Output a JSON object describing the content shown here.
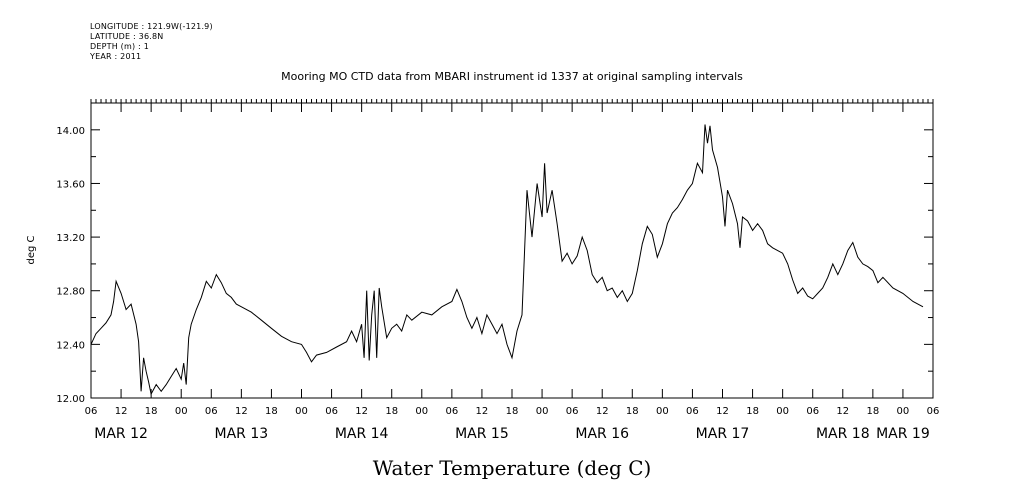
{
  "meta": {
    "longitude": "LONGITUDE : 121.9W(-121.9)",
    "latitude": "LATITUDE : 36.8N",
    "depth": "DEPTH (m) : 1",
    "year": "YEAR : 2011"
  },
  "chart_data": {
    "type": "line",
    "title": "Mooring MO CTD data from MBARI instrument id 1337 at original sampling intervals",
    "xlabel": "Water Temperature (deg C)",
    "ylabel": "deg C",
    "ylim": [
      12.0,
      14.2
    ],
    "xlim_hours": [
      0,
      168
    ],
    "x_start": "2011-03-12T06:00",
    "x_end": "2011-03-19T06:00",
    "yticks": [
      "12.00",
      "12.40",
      "12.80",
      "13.20",
      "13.60",
      "14.00"
    ],
    "x_hour_ticks": [
      "06",
      "12",
      "18",
      "00",
      "06",
      "12",
      "18",
      "00",
      "06",
      "12",
      "18",
      "00",
      "06",
      "12",
      "18",
      "00",
      "06",
      "12",
      "18",
      "00",
      "06",
      "12",
      "18",
      "00",
      "06",
      "12",
      "18",
      "00",
      "06"
    ],
    "x_day_labels": [
      "MAR 12",
      "MAR 13",
      "MAR 14",
      "MAR 15",
      "MAR 16",
      "MAR 17",
      "MAR 18",
      "MAR 19"
    ],
    "grid": false,
    "series": [
      {
        "values": [
          [
            "2011-03-12T06:00",
            12.4
          ],
          [
            "2011-03-12T07:00",
            12.48
          ],
          [
            "2011-03-12T08:00",
            12.52
          ],
          [
            "2011-03-12T09:00",
            12.56
          ],
          [
            "2011-03-12T10:00",
            12.62
          ],
          [
            "2011-03-12T10:30",
            12.72
          ],
          [
            "2011-03-12T11:00",
            12.87
          ],
          [
            "2011-03-12T12:00",
            12.78
          ],
          [
            "2011-03-12T13:00",
            12.66
          ],
          [
            "2011-03-12T14:00",
            12.7
          ],
          [
            "2011-03-12T15:00",
            12.55
          ],
          [
            "2011-03-12T15:30",
            12.42
          ],
          [
            "2011-03-12T16:00",
            12.05
          ],
          [
            "2011-03-12T16:30",
            12.3
          ],
          [
            "2011-03-12T17:00",
            12.2
          ],
          [
            "2011-03-12T17:30",
            12.12
          ],
          [
            "2011-03-12T18:00",
            12.03
          ],
          [
            "2011-03-12T19:00",
            12.1
          ],
          [
            "2011-03-12T20:00",
            12.05
          ],
          [
            "2011-03-12T21:00",
            12.1
          ],
          [
            "2011-03-12T22:00",
            12.16
          ],
          [
            "2011-03-12T23:00",
            12.22
          ],
          [
            "2011-03-13T00:00",
            12.14
          ],
          [
            "2011-03-13T00:30",
            12.26
          ],
          [
            "2011-03-13T01:00",
            12.1
          ],
          [
            "2011-03-13T01:30",
            12.45
          ],
          [
            "2011-03-13T02:00",
            12.55
          ],
          [
            "2011-03-13T03:00",
            12.66
          ],
          [
            "2011-03-13T04:00",
            12.75
          ],
          [
            "2011-03-13T05:00",
            12.87
          ],
          [
            "2011-03-13T06:00",
            12.82
          ],
          [
            "2011-03-13T07:00",
            12.92
          ],
          [
            "2011-03-13T08:00",
            12.86
          ],
          [
            "2011-03-13T09:00",
            12.78
          ],
          [
            "2011-03-13T10:00",
            12.75
          ],
          [
            "2011-03-13T11:00",
            12.7
          ],
          [
            "2011-03-13T12:00",
            12.68
          ],
          [
            "2011-03-13T14:00",
            12.64
          ],
          [
            "2011-03-13T16:00",
            12.58
          ],
          [
            "2011-03-13T18:00",
            12.52
          ],
          [
            "2011-03-13T20:00",
            12.46
          ],
          [
            "2011-03-13T22:00",
            12.42
          ],
          [
            "2011-03-14T00:00",
            12.4
          ],
          [
            "2011-03-14T01:00",
            12.34
          ],
          [
            "2011-03-14T02:00",
            12.27
          ],
          [
            "2011-03-14T03:00",
            12.32
          ],
          [
            "2011-03-14T05:00",
            12.34
          ],
          [
            "2011-03-14T07:00",
            12.38
          ],
          [
            "2011-03-14T09:00",
            12.42
          ],
          [
            "2011-03-14T10:00",
            12.5
          ],
          [
            "2011-03-14T11:00",
            12.42
          ],
          [
            "2011-03-14T12:00",
            12.55
          ],
          [
            "2011-03-14T12:30",
            12.3
          ],
          [
            "2011-03-14T13:00",
            12.8
          ],
          [
            "2011-03-14T13:30",
            12.28
          ],
          [
            "2011-03-14T14:00",
            12.62
          ],
          [
            "2011-03-14T14:30",
            12.8
          ],
          [
            "2011-03-14T15:00",
            12.3
          ],
          [
            "2011-03-14T15:30",
            12.82
          ],
          [
            "2011-03-14T16:00",
            12.68
          ],
          [
            "2011-03-14T17:00",
            12.45
          ],
          [
            "2011-03-14T18:00",
            12.52
          ],
          [
            "2011-03-14T19:00",
            12.55
          ],
          [
            "2011-03-14T20:00",
            12.5
          ],
          [
            "2011-03-14T21:00",
            12.62
          ],
          [
            "2011-03-14T22:00",
            12.58
          ],
          [
            "2011-03-15T00:00",
            12.64
          ],
          [
            "2011-03-15T02:00",
            12.62
          ],
          [
            "2011-03-15T04:00",
            12.68
          ],
          [
            "2011-03-15T06:00",
            12.72
          ],
          [
            "2011-03-15T07:00",
            12.81
          ],
          [
            "2011-03-15T08:00",
            12.72
          ],
          [
            "2011-03-15T09:00",
            12.6
          ],
          [
            "2011-03-15T10:00",
            12.52
          ],
          [
            "2011-03-15T11:00",
            12.6
          ],
          [
            "2011-03-15T12:00",
            12.48
          ],
          [
            "2011-03-15T13:00",
            12.62
          ],
          [
            "2011-03-15T14:00",
            12.55
          ],
          [
            "2011-03-15T15:00",
            12.48
          ],
          [
            "2011-03-15T16:00",
            12.55
          ],
          [
            "2011-03-15T17:00",
            12.4
          ],
          [
            "2011-03-15T18:00",
            12.3
          ],
          [
            "2011-03-15T19:00",
            12.5
          ],
          [
            "2011-03-15T20:00",
            12.62
          ],
          [
            "2011-03-15T21:00",
            13.55
          ],
          [
            "2011-03-15T22:00",
            13.2
          ],
          [
            "2011-03-15T23:00",
            13.6
          ],
          [
            "2011-03-16T00:00",
            13.35
          ],
          [
            "2011-03-16T00:30",
            13.75
          ],
          [
            "2011-03-16T01:00",
            13.38
          ],
          [
            "2011-03-16T02:00",
            13.55
          ],
          [
            "2011-03-16T03:00",
            13.3
          ],
          [
            "2011-03-16T04:00",
            13.02
          ],
          [
            "2011-03-16T05:00",
            13.08
          ],
          [
            "2011-03-16T06:00",
            13.0
          ],
          [
            "2011-03-16T07:00",
            13.06
          ],
          [
            "2011-03-16T08:00",
            13.2
          ],
          [
            "2011-03-16T09:00",
            13.1
          ],
          [
            "2011-03-16T10:00",
            12.92
          ],
          [
            "2011-03-16T11:00",
            12.86
          ],
          [
            "2011-03-16T12:00",
            12.9
          ],
          [
            "2011-03-16T13:00",
            12.8
          ],
          [
            "2011-03-16T14:00",
            12.82
          ],
          [
            "2011-03-16T15:00",
            12.75
          ],
          [
            "2011-03-16T16:00",
            12.8
          ],
          [
            "2011-03-16T17:00",
            12.72
          ],
          [
            "2011-03-16T18:00",
            12.78
          ],
          [
            "2011-03-16T19:00",
            12.95
          ],
          [
            "2011-03-16T20:00",
            13.15
          ],
          [
            "2011-03-16T21:00",
            13.28
          ],
          [
            "2011-03-16T22:00",
            13.22
          ],
          [
            "2011-03-16T23:00",
            13.05
          ],
          [
            "2011-03-17T00:00",
            13.15
          ],
          [
            "2011-03-17T01:00",
            13.3
          ],
          [
            "2011-03-17T02:00",
            13.38
          ],
          [
            "2011-03-17T03:00",
            13.42
          ],
          [
            "2011-03-17T04:00",
            13.48
          ],
          [
            "2011-03-17T05:00",
            13.55
          ],
          [
            "2011-03-17T06:00",
            13.6
          ],
          [
            "2011-03-17T07:00",
            13.75
          ],
          [
            "2011-03-17T08:00",
            13.68
          ],
          [
            "2011-03-17T08:30",
            14.04
          ],
          [
            "2011-03-17T09:00",
            13.9
          ],
          [
            "2011-03-17T09:30",
            14.03
          ],
          [
            "2011-03-17T10:00",
            13.85
          ],
          [
            "2011-03-17T11:00",
            13.72
          ],
          [
            "2011-03-17T12:00",
            13.5
          ],
          [
            "2011-03-17T12:30",
            13.28
          ],
          [
            "2011-03-17T13:00",
            13.55
          ],
          [
            "2011-03-17T14:00",
            13.45
          ],
          [
            "2011-03-17T15:00",
            13.3
          ],
          [
            "2011-03-17T15:30",
            13.12
          ],
          [
            "2011-03-17T16:00",
            13.35
          ],
          [
            "2011-03-17T17:00",
            13.32
          ],
          [
            "2011-03-17T18:00",
            13.25
          ],
          [
            "2011-03-17T19:00",
            13.3
          ],
          [
            "2011-03-17T20:00",
            13.25
          ],
          [
            "2011-03-17T21:00",
            13.15
          ],
          [
            "2011-03-17T22:00",
            13.12
          ],
          [
            "2011-03-18T00:00",
            13.08
          ],
          [
            "2011-03-18T01:00",
            13.0
          ],
          [
            "2011-03-18T02:00",
            12.88
          ],
          [
            "2011-03-18T03:00",
            12.78
          ],
          [
            "2011-03-18T04:00",
            12.82
          ],
          [
            "2011-03-18T05:00",
            12.76
          ],
          [
            "2011-03-18T06:00",
            12.74
          ],
          [
            "2011-03-18T07:00",
            12.78
          ],
          [
            "2011-03-18T08:00",
            12.82
          ],
          [
            "2011-03-18T09:00",
            12.9
          ],
          [
            "2011-03-18T10:00",
            13.0
          ],
          [
            "2011-03-18T11:00",
            12.92
          ],
          [
            "2011-03-18T12:00",
            13.0
          ],
          [
            "2011-03-18T13:00",
            13.1
          ],
          [
            "2011-03-18T14:00",
            13.16
          ],
          [
            "2011-03-18T15:00",
            13.05
          ],
          [
            "2011-03-18T16:00",
            13.0
          ],
          [
            "2011-03-18T17:00",
            12.98
          ],
          [
            "2011-03-18T18:00",
            12.95
          ],
          [
            "2011-03-18T19:00",
            12.86
          ],
          [
            "2011-03-18T20:00",
            12.9
          ],
          [
            "2011-03-18T22:00",
            12.82
          ],
          [
            "2011-03-19T00:00",
            12.78
          ],
          [
            "2011-03-19T02:00",
            12.72
          ],
          [
            "2011-03-19T04:00",
            12.68
          ]
        ]
      }
    ]
  }
}
